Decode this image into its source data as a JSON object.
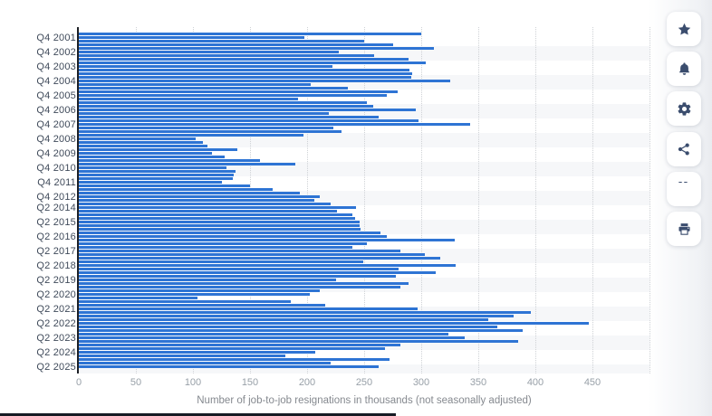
{
  "chart_data": {
    "type": "bar",
    "orientation": "horizontal",
    "title": "",
    "xlabel": "Number of job-to-job resignations in thousands (not seasonally adjusted)",
    "ylabel": "",
    "xlim": [
      0,
      500
    ],
    "x_ticks": [
      0,
      50,
      100,
      150,
      200,
      250,
      300,
      350,
      400,
      450
    ],
    "grid": "dotted-vertical",
    "bar_color": "#2e74d4",
    "values": [
      300,
      198,
      250,
      275,
      311,
      228,
      259,
      289,
      304,
      222,
      290,
      292,
      291,
      325,
      203,
      236,
      279,
      270,
      192,
      252,
      258,
      295,
      219,
      263,
      298,
      343,
      223,
      230,
      197,
      102,
      109,
      113,
      139,
      117,
      128,
      159,
      190,
      129,
      137,
      136,
      135,
      125,
      150,
      170,
      194,
      211,
      206,
      221,
      243,
      226,
      240,
      242,
      246,
      246,
      247,
      264,
      270,
      329,
      252,
      240,
      282,
      303,
      317,
      249,
      330,
      280,
      313,
      278,
      225,
      289,
      282,
      211,
      202,
      104,
      186,
      216,
      297,
      396,
      381,
      359,
      447,
      367,
      389,
      324,
      338,
      385,
      282,
      268,
      207,
      181,
      272,
      221,
      263
    ],
    "axis_labels": [
      {
        "label": "Q4 2001",
        "bar": 2
      },
      {
        "label": "Q4 2002",
        "bar": 6
      },
      {
        "label": "Q4 2003",
        "bar": 10
      },
      {
        "label": "Q4 2004",
        "bar": 14
      },
      {
        "label": "Q4 2005",
        "bar": 18
      },
      {
        "label": "Q4 2006",
        "bar": 22
      },
      {
        "label": "Q4 2007",
        "bar": 26
      },
      {
        "label": "Q4 2008",
        "bar": 30
      },
      {
        "label": "Q4 2009",
        "bar": 34
      },
      {
        "label": "Q4 2010",
        "bar": 38
      },
      {
        "label": "Q4 2011",
        "bar": 42
      },
      {
        "label": "Q4 2012",
        "bar": 46
      },
      {
        "label": "Q2 2014",
        "bar": 49
      },
      {
        "label": "Q2 2015",
        "bar": 53
      },
      {
        "label": "Q2 2016",
        "bar": 57
      },
      {
        "label": "Q2 2017",
        "bar": 61
      },
      {
        "label": "Q2 2018",
        "bar": 65
      },
      {
        "label": "Q2 2019",
        "bar": 69
      },
      {
        "label": "Q2 2020",
        "bar": 73
      },
      {
        "label": "Q2 2021",
        "bar": 77
      },
      {
        "label": "Q2 2022",
        "bar": 81
      },
      {
        "label": "Q2 2023",
        "bar": 85
      },
      {
        "label": "Q2 2024",
        "bar": 89
      },
      {
        "label": "Q2 2025",
        "bar": 93
      }
    ]
  },
  "toolbar": {
    "buttons": [
      {
        "name": "favorite",
        "icon": "star-icon"
      },
      {
        "name": "alerts",
        "icon": "bell-icon"
      },
      {
        "name": "settings",
        "icon": "gear-icon"
      },
      {
        "name": "share",
        "icon": "share-icon"
      },
      {
        "name": "cite",
        "icon": "quote-icon"
      },
      {
        "name": "print",
        "icon": "printer-icon"
      }
    ],
    "quote_glyph": "“"
  },
  "colors": {
    "bar": "#2e74d4",
    "icon": "#3b4d6e",
    "band": "#f6f7f9",
    "gridline": "#cfd2d6",
    "axis_line": "#1d2026",
    "y_label_text": "#3f4a5a",
    "x_tick_text": "#98a0a8",
    "axis_title_text": "#85898f"
  }
}
